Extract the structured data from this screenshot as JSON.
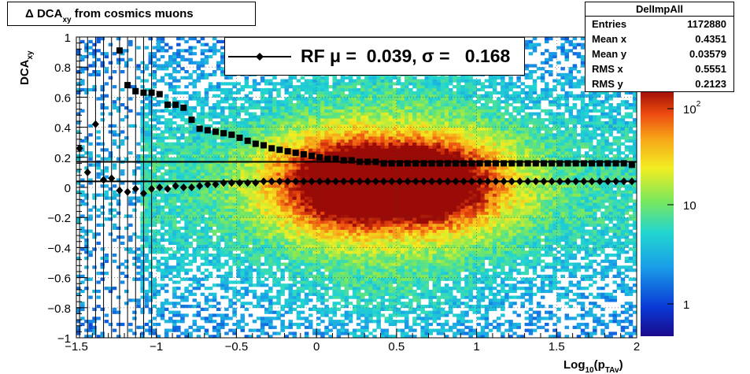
{
  "title": {
    "prefix": "Δ DCA",
    "subscript": "xy",
    "suffix": " from cosmics muons"
  },
  "stats_box": {
    "name": "DelImpAll",
    "entries": [
      {
        "label": "Entries",
        "value": "1172880"
      },
      {
        "label": "Mean x",
        "value": "0.4351"
      },
      {
        "label": "Mean y",
        "value": "0.03579"
      },
      {
        "label": "RMS x",
        "value": "0.5551"
      },
      {
        "label": "RMS y",
        "value": "0.2123"
      }
    ]
  },
  "legend": {
    "text": "RF μ =  0.039, σ =   0.168"
  },
  "chart_data": {
    "type": "heatmap",
    "title": "Δ DCAxy from cosmics muons",
    "xlabel": "Log10(pTAv)",
    "ylabel": "DCAxy",
    "xlim": [
      -1.5,
      2
    ],
    "ylim": [
      -1,
      1
    ],
    "x_ticks": [
      "−1.5",
      "−1",
      "−0.5",
      "0",
      "0.5",
      "1",
      "1.5",
      "2"
    ],
    "y_ticks": [
      "−1",
      "−0.8",
      "−0.6",
      "−0.4",
      "−0.2",
      "0",
      "0.2",
      "0.4",
      "0.6",
      "0.8",
      "1"
    ],
    "z_scale": "log",
    "z_ticks": [
      "1",
      "10",
      "10^2"
    ],
    "grid": true,
    "horizontal_lines_y": [
      0.17,
      0.04
    ],
    "series": [
      {
        "name": "RF",
        "marker": "diamond",
        "x": [
          -1.48,
          -1.43,
          -1.38,
          -1.33,
          -1.28,
          -1.23,
          -1.18,
          -1.13,
          -1.08,
          -1.03,
          -0.98,
          -0.93,
          -0.88,
          -0.83,
          -0.78,
          -0.73,
          -0.68,
          -0.63,
          -0.58,
          -0.53,
          -0.48,
          -0.43,
          -0.38,
          -0.33,
          -0.28,
          -0.23,
          -0.18,
          -0.13,
          -0.08,
          -0.03,
          0.02,
          0.07,
          0.12,
          0.17,
          0.22,
          0.27,
          0.32,
          0.37,
          0.42,
          0.47,
          0.52,
          0.57,
          0.62,
          0.67,
          0.72,
          0.77,
          0.82,
          0.87,
          0.92,
          0.97,
          1.02,
          1.07,
          1.12,
          1.17,
          1.22,
          1.27,
          1.32,
          1.37,
          1.42,
          1.47,
          1.52,
          1.57,
          1.62,
          1.67,
          1.72,
          1.77,
          1.82,
          1.87,
          1.92,
          1.97
        ],
        "y": [
          0.26,
          0.1,
          0.42,
          0.05,
          0.06,
          -0.02,
          -0.03,
          -0.01,
          -0.04,
          -0.01,
          0.0,
          -0.01,
          0.01,
          0.0,
          0.0,
          0.01,
          0.02,
          0.02,
          0.03,
          0.03,
          0.03,
          0.03,
          0.03,
          0.04,
          0.04,
          0.04,
          0.04,
          0.04,
          0.04,
          0.04,
          0.04,
          0.04,
          0.04,
          0.04,
          0.04,
          0.04,
          0.04,
          0.04,
          0.04,
          0.04,
          0.04,
          0.04,
          0.04,
          0.04,
          0.04,
          0.04,
          0.04,
          0.04,
          0.04,
          0.04,
          0.04,
          0.04,
          0.04,
          0.04,
          0.04,
          0.04,
          0.04,
          0.04,
          0.04,
          0.04,
          0.04,
          0.04,
          0.04,
          0.04,
          0.04,
          0.04,
          0.04,
          0.04,
          0.04,
          0.04
        ]
      },
      {
        "name": "",
        "marker": "square",
        "x": [
          -1.23,
          -1.18,
          -1.13,
          -1.08,
          -1.03,
          -0.98,
          -0.93,
          -0.88,
          -0.83,
          -0.78,
          -0.73,
          -0.68,
          -0.63,
          -0.58,
          -0.53,
          -0.48,
          -0.43,
          -0.38,
          -0.33,
          -0.28,
          -0.23,
          -0.18,
          -0.13,
          -0.08,
          -0.03,
          0.02,
          0.07,
          0.12,
          0.17,
          0.22,
          0.27,
          0.32,
          0.37,
          0.42,
          0.47,
          0.52,
          0.57,
          0.62,
          0.67,
          0.72,
          0.77,
          0.82,
          0.87,
          0.92,
          0.97,
          1.02,
          1.07,
          1.12,
          1.17,
          1.22,
          1.27,
          1.32,
          1.37,
          1.42,
          1.47,
          1.52,
          1.57,
          1.62,
          1.67,
          1.72,
          1.77,
          1.82,
          1.87,
          1.92,
          1.97
        ],
        "y": [
          0.91,
          0.68,
          0.64,
          0.63,
          0.63,
          0.62,
          0.55,
          0.55,
          0.53,
          0.45,
          0.39,
          0.38,
          0.37,
          0.36,
          0.35,
          0.33,
          0.31,
          0.29,
          0.28,
          0.26,
          0.25,
          0.24,
          0.23,
          0.22,
          0.21,
          0.2,
          0.19,
          0.19,
          0.18,
          0.18,
          0.17,
          0.17,
          0.17,
          0.16,
          0.16,
          0.16,
          0.16,
          0.16,
          0.16,
          0.16,
          0.16,
          0.16,
          0.16,
          0.16,
          0.16,
          0.16,
          0.16,
          0.16,
          0.16,
          0.16,
          0.16,
          0.16,
          0.16,
          0.16,
          0.16,
          0.16,
          0.16,
          0.16,
          0.16,
          0.16,
          0.16,
          0.16,
          0.16,
          0.16,
          0.15
        ]
      }
    ]
  }
}
